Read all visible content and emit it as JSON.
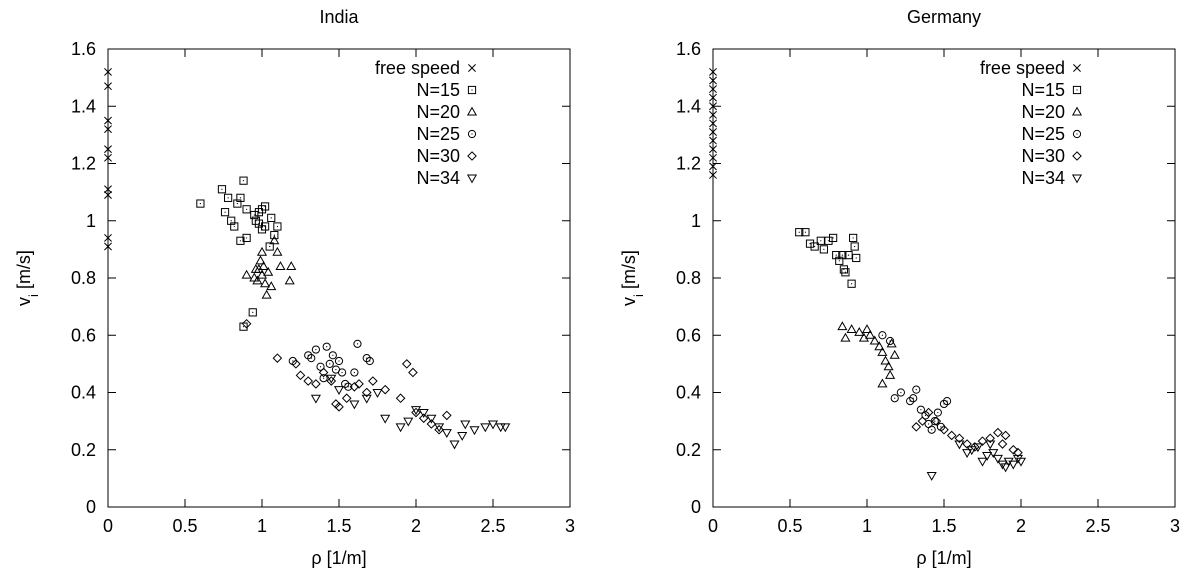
{
  "chart_data": [
    {
      "type": "scatter",
      "title": "India",
      "xlabel": "ρ [1/m]",
      "ylabel": "vi [m/s]",
      "xlim": [
        0,
        3
      ],
      "ylim": [
        0,
        1.6
      ],
      "xticks": [
        "0",
        "0.5",
        "1",
        "1.5",
        "2",
        "2.5",
        "3"
      ],
      "yticks": [
        "0",
        "0.2",
        "0.4",
        "0.6",
        "0.8",
        "1",
        "1.2",
        "1.4",
        "1.6"
      ],
      "grid": false,
      "legend_position": "top-right",
      "series": [
        {
          "name": "free speed",
          "marker": "x",
          "points": [
            [
              0,
              1.52
            ],
            [
              0,
              1.47
            ],
            [
              0,
              1.35
            ],
            [
              0,
              1.32
            ],
            [
              0,
              1.25
            ],
            [
              0,
              1.22
            ],
            [
              0,
              1.11
            ],
            [
              0,
              1.09
            ],
            [
              0,
              0.94
            ],
            [
              0,
              0.91
            ]
          ]
        },
        {
          "name": "N=15",
          "marker": "square",
          "points": [
            [
              0.6,
              1.06
            ],
            [
              0.74,
              1.11
            ],
            [
              0.76,
              1.03
            ],
            [
              0.78,
              1.08
            ],
            [
              0.8,
              1.0
            ],
            [
              0.82,
              0.98
            ],
            [
              0.84,
              1.06
            ],
            [
              0.86,
              1.08
            ],
            [
              0.88,
              1.14
            ],
            [
              0.86,
              0.93
            ],
            [
              0.88,
              0.63
            ],
            [
              0.9,
              0.94
            ],
            [
              0.9,
              1.04
            ],
            [
              0.94,
              0.68
            ],
            [
              0.95,
              1.02
            ],
            [
              0.96,
              1.0
            ],
            [
              0.98,
              0.99
            ],
            [
              0.98,
              1.03
            ],
            [
              1.0,
              0.97
            ],
            [
              1.0,
              1.04
            ],
            [
              1.02,
              1.05
            ],
            [
              1.02,
              0.98
            ],
            [
              1.05,
              0.91
            ],
            [
              1.06,
              1.01
            ],
            [
              1.08,
              0.95
            ],
            [
              1.1,
              0.98
            ]
          ]
        },
        {
          "name": "N=20",
          "marker": "triangle",
          "points": [
            [
              0.9,
              0.81
            ],
            [
              0.95,
              0.8
            ],
            [
              0.96,
              0.83
            ],
            [
              0.97,
              0.79
            ],
            [
              0.98,
              0.83
            ],
            [
              0.99,
              0.86
            ],
            [
              1.0,
              0.81
            ],
            [
              1.0,
              0.89
            ],
            [
              1.01,
              0.84
            ],
            [
              1.02,
              0.78
            ],
            [
              1.03,
              0.74
            ],
            [
              1.04,
              0.82
            ],
            [
              1.06,
              0.77
            ],
            [
              1.08,
              0.93
            ],
            [
              1.1,
              0.89
            ],
            [
              1.12,
              0.84
            ],
            [
              1.18,
              0.79
            ],
            [
              1.19,
              0.84
            ]
          ]
        },
        {
          "name": "N=25",
          "marker": "circle",
          "points": [
            [
              1.2,
              0.51
            ],
            [
              1.3,
              0.53
            ],
            [
              1.32,
              0.52
            ],
            [
              1.35,
              0.55
            ],
            [
              1.38,
              0.49
            ],
            [
              1.4,
              0.45
            ],
            [
              1.42,
              0.56
            ],
            [
              1.44,
              0.5
            ],
            [
              1.46,
              0.53
            ],
            [
              1.48,
              0.48
            ],
            [
              1.5,
              0.51
            ],
            [
              1.52,
              0.47
            ],
            [
              1.56,
              0.42
            ],
            [
              1.6,
              0.47
            ],
            [
              1.62,
              0.57
            ],
            [
              1.68,
              0.52
            ],
            [
              1.7,
              0.51
            ],
            [
              1.54,
              0.43
            ]
          ]
        },
        {
          "name": "N=30",
          "marker": "diamond",
          "points": [
            [
              0.9,
              0.64
            ],
            [
              1.1,
              0.52
            ],
            [
              1.22,
              0.5
            ],
            [
              1.25,
              0.46
            ],
            [
              1.3,
              0.44
            ],
            [
              1.35,
              0.43
            ],
            [
              1.4,
              0.47
            ],
            [
              1.45,
              0.44
            ],
            [
              1.48,
              0.36
            ],
            [
              1.5,
              0.35
            ],
            [
              1.55,
              0.38
            ],
            [
              1.6,
              0.42
            ],
            [
              1.63,
              0.43
            ],
            [
              1.68,
              0.4
            ],
            [
              1.72,
              0.44
            ],
            [
              1.8,
              0.41
            ],
            [
              1.9,
              0.38
            ],
            [
              1.94,
              0.5
            ],
            [
              1.98,
              0.47
            ],
            [
              2.0,
              0.33
            ],
            [
              2.05,
              0.31
            ],
            [
              2.1,
              0.29
            ],
            [
              2.15,
              0.27
            ],
            [
              2.2,
              0.32
            ]
          ]
        },
        {
          "name": "N=34",
          "marker": "triangle-down",
          "points": [
            [
              1.35,
              0.38
            ],
            [
              1.45,
              0.45
            ],
            [
              1.5,
              0.41
            ],
            [
              1.6,
              0.36
            ],
            [
              1.68,
              0.38
            ],
            [
              1.75,
              0.4
            ],
            [
              1.8,
              0.31
            ],
            [
              1.9,
              0.28
            ],
            [
              1.95,
              0.3
            ],
            [
              2.0,
              0.34
            ],
            [
              2.05,
              0.33
            ],
            [
              2.1,
              0.31
            ],
            [
              2.15,
              0.28
            ],
            [
              2.2,
              0.26
            ],
            [
              2.25,
              0.22
            ],
            [
              2.3,
              0.25
            ],
            [
              2.32,
              0.29
            ],
            [
              2.38,
              0.27
            ],
            [
              2.45,
              0.28
            ],
            [
              2.5,
              0.29
            ],
            [
              2.55,
              0.28
            ],
            [
              2.58,
              0.28
            ]
          ]
        }
      ]
    },
    {
      "type": "scatter",
      "title": "Germany",
      "xlabel": "ρ [1/m]",
      "ylabel": "vi [m/s]",
      "xlim": [
        0,
        3
      ],
      "ylim": [
        0,
        1.6
      ],
      "xticks": [
        "0",
        "0.5",
        "1",
        "1.5",
        "2",
        "2.5",
        "3"
      ],
      "yticks": [
        "0",
        "0.2",
        "0.4",
        "0.6",
        "0.8",
        "1",
        "1.2",
        "1.4",
        "1.6"
      ],
      "grid": false,
      "legend_position": "top-right",
      "series": [
        {
          "name": "free speed",
          "marker": "x",
          "points": [
            [
              0,
              1.52
            ],
            [
              0,
              1.49
            ],
            [
              0,
              1.46
            ],
            [
              0,
              1.43
            ],
            [
              0,
              1.4
            ],
            [
              0,
              1.37
            ],
            [
              0,
              1.34
            ],
            [
              0,
              1.31
            ],
            [
              0,
              1.28
            ],
            [
              0,
              1.25
            ],
            [
              0,
              1.22
            ],
            [
              0,
              1.19
            ],
            [
              0,
              1.16
            ]
          ]
        },
        {
          "name": "N=15",
          "marker": "square",
          "points": [
            [
              0.56,
              0.96
            ],
            [
              0.6,
              0.96
            ],
            [
              0.63,
              0.92
            ],
            [
              0.66,
              0.91
            ],
            [
              0.7,
              0.93
            ],
            [
              0.72,
              0.9
            ],
            [
              0.75,
              0.93
            ],
            [
              0.78,
              0.94
            ],
            [
              0.8,
              0.88
            ],
            [
              0.82,
              0.86
            ],
            [
              0.84,
              0.88
            ],
            [
              0.85,
              0.83
            ],
            [
              0.86,
              0.82
            ],
            [
              0.88,
              0.88
            ],
            [
              0.9,
              0.78
            ],
            [
              0.91,
              0.94
            ],
            [
              0.92,
              0.91
            ],
            [
              0.93,
              0.87
            ]
          ]
        },
        {
          "name": "N=20",
          "marker": "triangle",
          "points": [
            [
              0.84,
              0.63
            ],
            [
              0.86,
              0.59
            ],
            [
              0.9,
              0.62
            ],
            [
              0.95,
              0.61
            ],
            [
              0.98,
              0.59
            ],
            [
              1.0,
              0.62
            ],
            [
              1.02,
              0.6
            ],
            [
              1.05,
              0.58
            ],
            [
              1.08,
              0.56
            ],
            [
              1.1,
              0.54
            ],
            [
              1.12,
              0.51
            ],
            [
              1.14,
              0.49
            ],
            [
              1.16,
              0.57
            ],
            [
              1.18,
              0.53
            ],
            [
              1.1,
              0.43
            ],
            [
              1.15,
              0.46
            ]
          ]
        },
        {
          "name": "N=25",
          "marker": "circle",
          "points": [
            [
              1.1,
              0.6
            ],
            [
              1.15,
              0.58
            ],
            [
              1.18,
              0.38
            ],
            [
              1.22,
              0.4
            ],
            [
              1.28,
              0.37
            ],
            [
              1.3,
              0.38
            ],
            [
              1.32,
              0.41
            ],
            [
              1.35,
              0.34
            ],
            [
              1.38,
              0.32
            ],
            [
              1.4,
              0.29
            ],
            [
              1.42,
              0.27
            ],
            [
              1.44,
              0.3
            ],
            [
              1.46,
              0.33
            ],
            [
              1.48,
              0.28
            ],
            [
              1.5,
              0.36
            ],
            [
              1.52,
              0.37
            ]
          ]
        },
        {
          "name": "N=30",
          "marker": "diamond",
          "points": [
            [
              1.32,
              0.28
            ],
            [
              1.36,
              0.3
            ],
            [
              1.4,
              0.33
            ],
            [
              1.45,
              0.3
            ],
            [
              1.5,
              0.27
            ],
            [
              1.55,
              0.25
            ],
            [
              1.6,
              0.24
            ],
            [
              1.65,
              0.22
            ],
            [
              1.7,
              0.21
            ],
            [
              1.75,
              0.23
            ],
            [
              1.8,
              0.24
            ],
            [
              1.85,
              0.26
            ],
            [
              1.88,
              0.22
            ],
            [
              1.9,
              0.25
            ],
            [
              1.95,
              0.2
            ],
            [
              1.98,
              0.19
            ]
          ]
        },
        {
          "name": "N=34",
          "marker": "triangle-down",
          "points": [
            [
              1.42,
              0.11
            ],
            [
              1.6,
              0.22
            ],
            [
              1.65,
              0.19
            ],
            [
              1.68,
              0.2
            ],
            [
              1.72,
              0.21
            ],
            [
              1.75,
              0.16
            ],
            [
              1.78,
              0.18
            ],
            [
              1.8,
              0.22
            ],
            [
              1.82,
              0.19
            ],
            [
              1.85,
              0.17
            ],
            [
              1.88,
              0.15
            ],
            [
              1.9,
              0.14
            ],
            [
              1.92,
              0.16
            ],
            [
              1.95,
              0.15
            ],
            [
              1.98,
              0.17
            ],
            [
              2.0,
              0.16
            ]
          ]
        }
      ]
    }
  ]
}
